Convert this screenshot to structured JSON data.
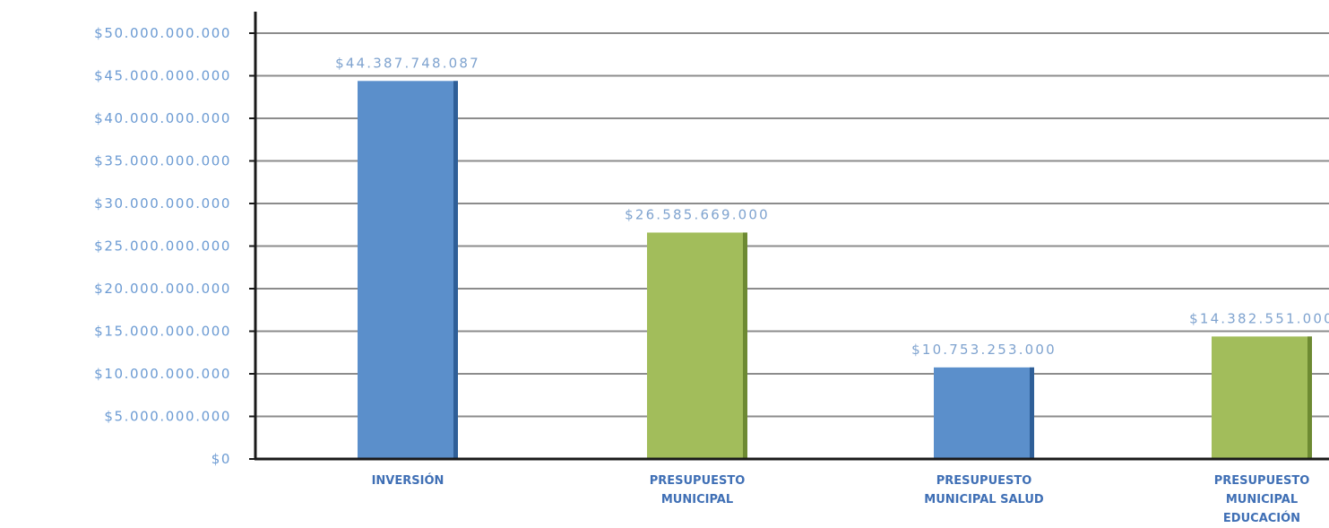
{
  "chart_data": {
    "type": "bar",
    "title": "",
    "xlabel": "",
    "ylabel": "",
    "ylim": [
      0,
      50000000000
    ],
    "ytick_step": 5000000000,
    "y_ticks": [
      "$0",
      "$5.000.000.000",
      "$10.000.000.000",
      "$15.000.000.000",
      "$20.000.000.000",
      "$25.000.000.000",
      "$30.000.000.000",
      "$35.000.000.000",
      "$40.000.000.000",
      "$45.000.000.000",
      "$50.000.000.000"
    ],
    "grid": true,
    "legend": "none",
    "categories": [
      [
        "INVERSIÓN"
      ],
      [
        "PRESUPUESTO",
        "MUNICIPAL"
      ],
      [
        "PRESUPUESTO",
        "MUNICIPAL SALUD"
      ],
      [
        "PRESUPUESTO",
        "MUNICIPAL",
        "EDUCACIÓN"
      ]
    ],
    "values": [
      44387748087,
      26585669000,
      10753253000,
      14382551000
    ],
    "data_labels": [
      "$44.387.748.087",
      "$26.585.669.000",
      "$10.753.253.000",
      "$14.382.551.000"
    ],
    "bar_colors": [
      "#5b8fcb",
      "#a2bd5b",
      "#5b8fcb",
      "#a2bd5b"
    ],
    "bar_shadow_colors": [
      "#2f5f98",
      "#6d8a32",
      "#2f5f98",
      "#6d8a32"
    ]
  },
  "colors": {
    "tick_text": "#6c9bd3",
    "data_label_text": "#7fa3cf",
    "category_text": "#3f6fb5",
    "axis": "#1a1a1a",
    "grid": "#8c8c8c"
  }
}
